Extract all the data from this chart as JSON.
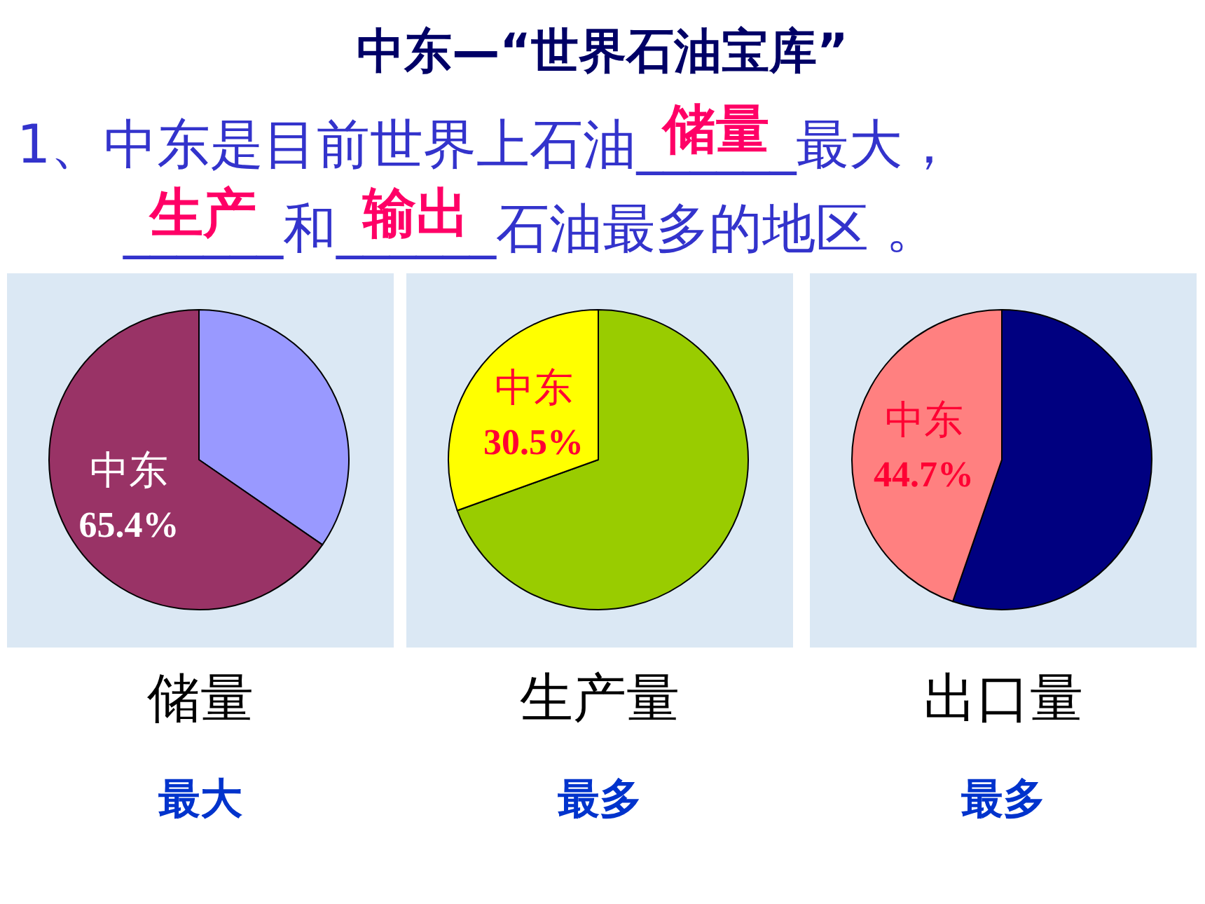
{
  "chart_data": [
    {
      "type": "other",
      "title": "中东—“世界石油宝库”",
      "subtitle": "1、中东是目前世界上石油______最大，\n______和______石油最多的地区 。",
      "annotations": [
        "储量",
        "生产",
        "输出"
      ]
    },
    {
      "type": "pie",
      "xlabel": "储量",
      "annotations": [
        "最大"
      ],
      "categories": [
        null,
        "中东"
      ],
      "values": [
        34.6,
        65.4
      ],
      "value_labels": [
        null,
        "65.4%"
      ],
      "colors": [
        "#9999ff",
        "#993366"
      ]
    },
    {
      "type": "pie",
      "xlabel": "生产量",
      "annotations": [
        "最多"
      ],
      "categories": [
        null,
        "中东"
      ],
      "values": [
        69.5,
        30.5
      ],
      "value_labels": [
        null,
        "30.5%"
      ],
      "colors": [
        "#99cc00",
        "#ffff00"
      ]
    },
    {
      "type": "pie",
      "xlabel": "出口量",
      "annotations": [
        "最多"
      ],
      "categories": [
        null,
        "中东"
      ],
      "values": [
        55.3,
        44.7
      ],
      "value_labels": [
        null,
        "44.7%"
      ],
      "colors": [
        "#000080",
        "#ff8080"
      ]
    }
  ]
}
